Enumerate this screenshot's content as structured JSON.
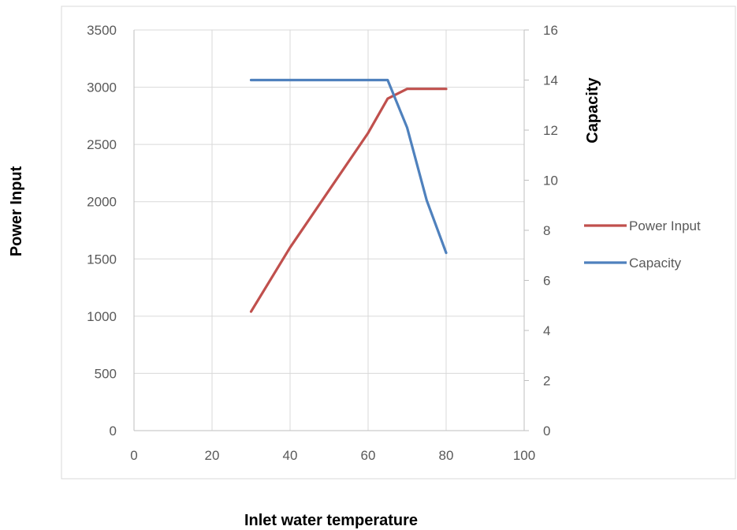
{
  "chart_data": {
    "type": "line",
    "xlabel": "Inlet water temperature",
    "ylabel": "Power Input",
    "y2label": "Capacity",
    "xlim": [
      0,
      100
    ],
    "ylim": [
      0,
      3500
    ],
    "y2lim": [
      0,
      16
    ],
    "xticks": [
      0,
      20,
      40,
      60,
      80,
      100
    ],
    "yticks": [
      0,
      500,
      1000,
      1500,
      2000,
      2500,
      3000,
      3500
    ],
    "y2ticks": [
      0,
      2,
      4,
      6,
      8,
      10,
      12,
      14,
      16
    ],
    "grid": true,
    "legend_position": "right",
    "series": [
      {
        "name": "Power Input",
        "axis": "left",
        "color": "#C0504D",
        "x": [
          30,
          40,
          50,
          60,
          65,
          70,
          75,
          80
        ],
        "y": [
          1040,
          1600,
          2100,
          2600,
          2900,
          2985,
          2985,
          2985
        ]
      },
      {
        "name": "Capacity",
        "axis": "right",
        "color": "#4F81BD",
        "x": [
          30,
          40,
          50,
          60,
          65,
          70,
          75,
          80
        ],
        "y": [
          14,
          14,
          14,
          14,
          14,
          12.1,
          9.2,
          7.1
        ]
      }
    ]
  }
}
